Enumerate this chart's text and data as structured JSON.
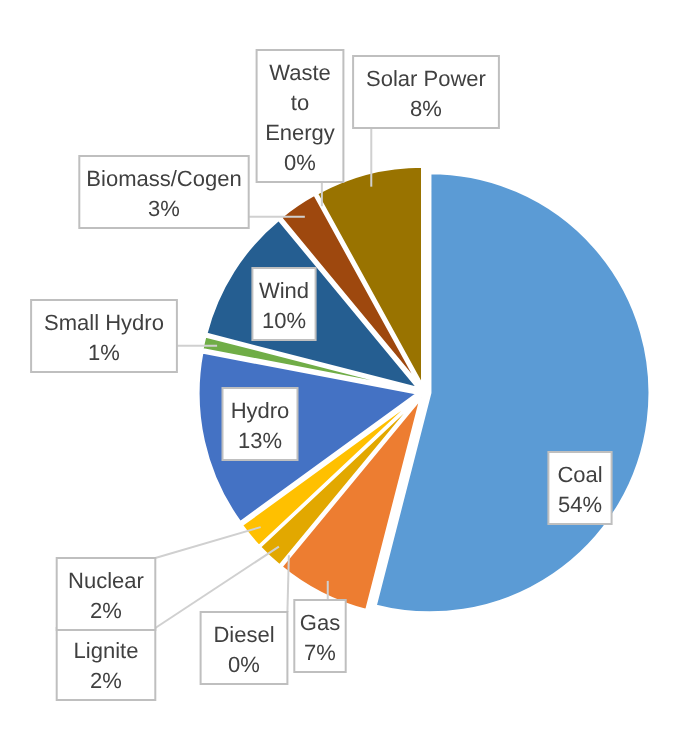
{
  "chart_data": {
    "type": "pie",
    "categories": [
      "Coal",
      "Gas",
      "Diesel",
      "Lignite",
      "Nuclear",
      "Hydro",
      "Small Hydro",
      "Wind",
      "Biomass/Cogen",
      "Waste to Energy",
      "Solar Power"
    ],
    "values": [
      54,
      7,
      0,
      2,
      2,
      13,
      1,
      10,
      3,
      0,
      8
    ],
    "value_labels": [
      "54%",
      "7%",
      "0%",
      "2%",
      "2%",
      "13%",
      "1%",
      "10%",
      "3%",
      "0%",
      "8%"
    ],
    "colors": [
      "#5b9bd5",
      "#ed7d31",
      "#a5a5a5",
      "#e2a800",
      "#ffc000",
      "#4472c4",
      "#70ad47",
      "#255e91",
      "#9e480e",
      "#636363",
      "#997300"
    ]
  }
}
